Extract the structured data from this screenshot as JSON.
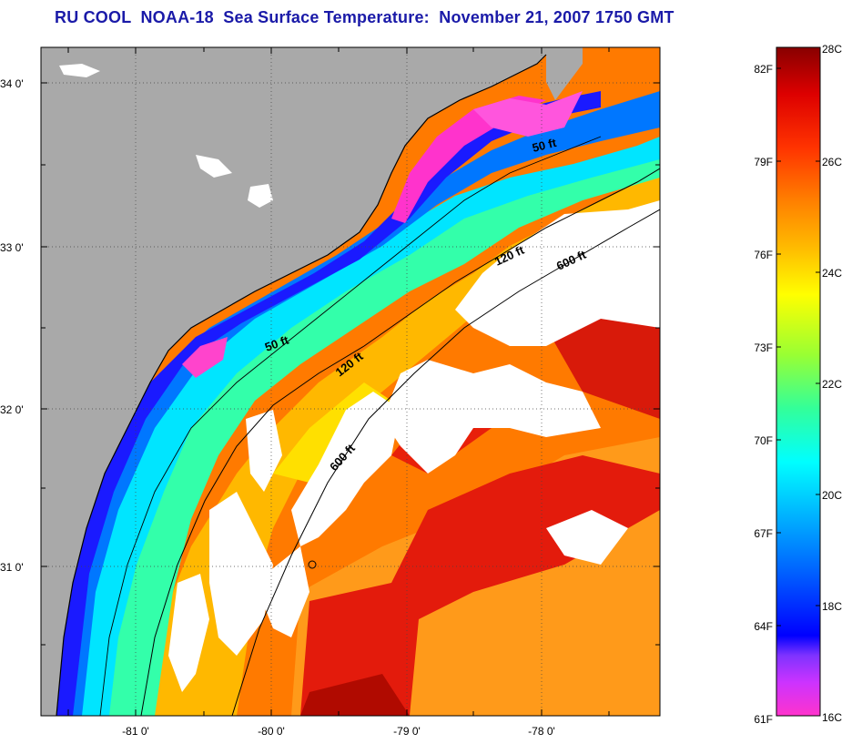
{
  "title": "RU COOL  NOAA-18  Sea Surface Temperature:  November 21, 2007 1750 GMT",
  "map": {
    "longitude_ticks": [
      {
        "label": "-81 0'",
        "lon": -81
      },
      {
        "label": "-80 0'",
        "lon": -80
      },
      {
        "label": "-79 0'",
        "lon": -79
      },
      {
        "label": "-78 0'",
        "lon": -78
      }
    ],
    "latitude_ticks": [
      {
        "label": "34 0'",
        "lat": 34
      },
      {
        "label": "33 0'",
        "lat": 33
      },
      {
        "label": "32 0'",
        "lat": 32
      },
      {
        "label": "31 0'",
        "lat": 31
      }
    ],
    "extent": {
      "lon_min": -81.6,
      "lon_max": -77.2,
      "lat_min": 30.1,
      "lat_max": 34.2
    },
    "depth_contour_labels": [
      "50 ft",
      "50 ft",
      "120 ft",
      "120 ft",
      "600 ft",
      "600 ft"
    ],
    "colors": {
      "land": "#a9a9a9",
      "cloud": "#ffffff",
      "coastline": "#000000",
      "contour": "#000000",
      "gridline": "#555555"
    }
  },
  "colorbar": {
    "celsius_labels": [
      "28C",
      "26C",
      "24C",
      "22C",
      "20C",
      "18C",
      "16C"
    ],
    "fahrenheit_labels": [
      "82F",
      "79F",
      "76F",
      "73F",
      "70F",
      "67F",
      "64F",
      "61F"
    ],
    "celsius_min": 16,
    "celsius_max": 28,
    "gradient_colors": [
      "#ff33cc",
      "#cc33ff",
      "#7f33ff",
      "#0000ff",
      "#0066ff",
      "#00b3ff",
      "#00ffff",
      "#33ff99",
      "#99ff33",
      "#ffff00",
      "#ffbb00",
      "#ff8000",
      "#ff3300",
      "#dd0000",
      "#880000"
    ]
  }
}
